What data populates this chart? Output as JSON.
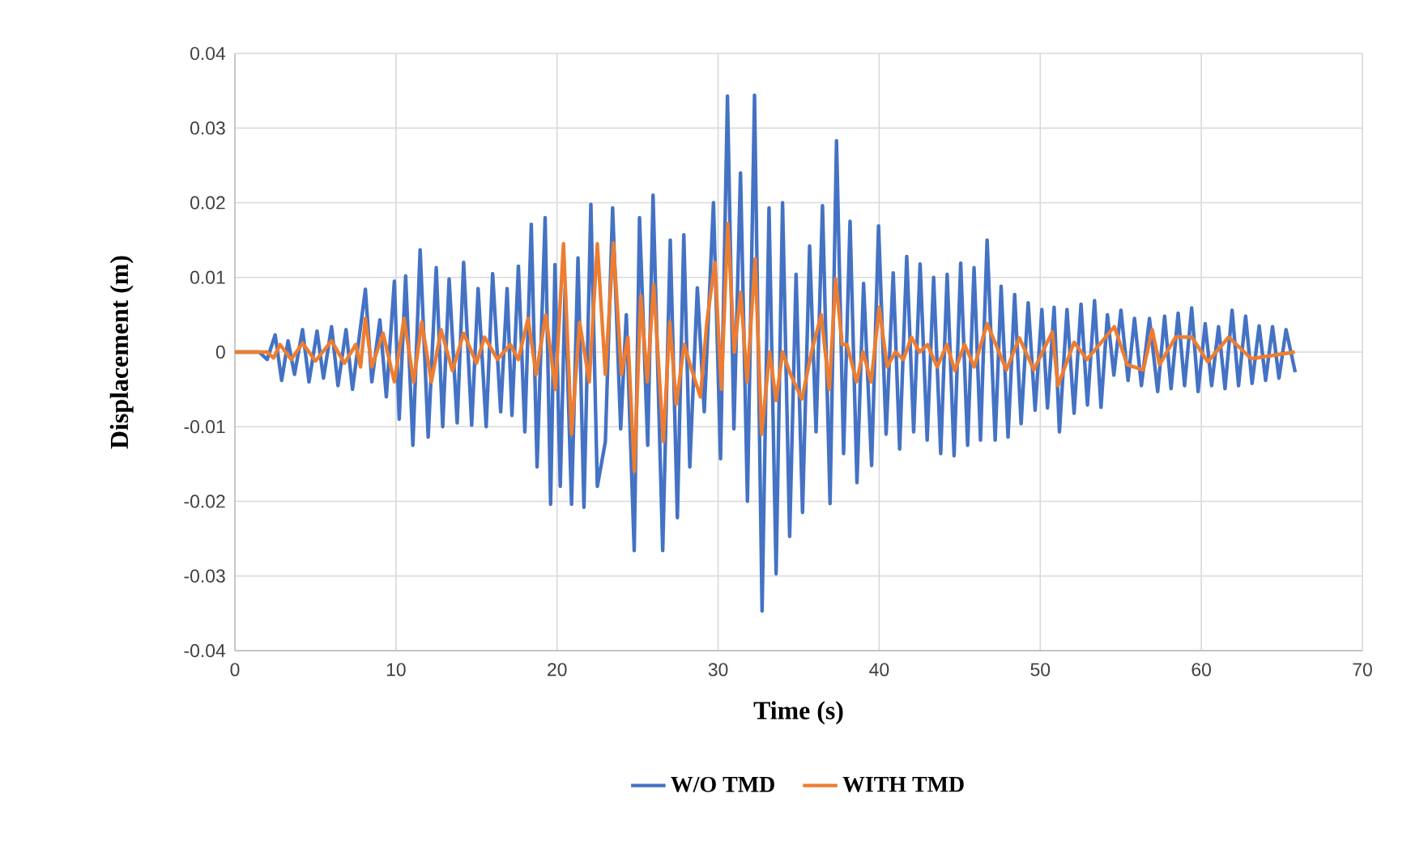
{
  "chart_data": {
    "type": "line",
    "xlabel": "Time (s)",
    "ylabel": "Displacement (m)",
    "xlim": [
      0,
      70
    ],
    "xticks": [
      0,
      10,
      20,
      30,
      40,
      50,
      60,
      70
    ],
    "ylim": [
      -0.04,
      0.04
    ],
    "yticks": [
      -0.04,
      -0.03,
      -0.02,
      -0.01,
      0,
      0.01,
      0.02,
      0.03,
      0.04
    ],
    "grid": true,
    "legend": "bottom",
    "series": [
      {
        "name": "W/O TMD",
        "color": "#4472c4",
        "x": [
          0,
          1.5,
          2.0,
          2.5,
          2.9,
          3.3,
          3.7,
          4.2,
          4.6,
          5.1,
          5.5,
          6.0,
          6.4,
          6.9,
          7.3,
          8.1,
          8.5,
          9.0,
          9.4,
          9.9,
          10.2,
          10.6,
          11.05,
          11.5,
          12.0,
          12.5,
          12.9,
          13.3,
          13.8,
          14.2,
          14.7,
          15.1,
          15.6,
          16.0,
          16.5,
          16.9,
          17.2,
          17.6,
          18.0,
          18.4,
          18.76,
          19.26,
          19.6,
          19.87,
          20.2,
          20.5,
          20.9,
          21.3,
          21.67,
          22.1,
          22.5,
          23.0,
          23.45,
          23.95,
          24.3,
          24.79,
          25.12,
          25.63,
          25.96,
          26.56,
          27.03,
          27.47,
          27.87,
          28.24,
          28.71,
          29.14,
          29.71,
          30.15,
          30.58,
          30.98,
          31.39,
          31.82,
          32.26,
          32.73,
          33.16,
          33.6,
          34.0,
          34.44,
          34.84,
          35.24,
          35.68,
          36.08,
          36.48,
          36.95,
          37.35,
          37.79,
          38.19,
          38.62,
          39.03,
          39.53,
          39.96,
          40.43,
          40.87,
          41.27,
          41.71,
          42.14,
          42.54,
          42.98,
          43.38,
          43.82,
          44.22,
          44.65,
          45.06,
          45.49,
          45.89,
          46.29,
          46.7,
          47.2,
          47.57,
          48.0,
          48.41,
          48.81,
          49.25,
          49.68,
          50.1,
          50.45,
          50.86,
          51.19,
          51.66,
          52.1,
          52.53,
          52.93,
          53.37,
          53.77,
          54.17,
          54.57,
          55.01,
          55.45,
          55.85,
          56.28,
          56.78,
          57.29,
          57.72,
          58.12,
          58.56,
          58.96,
          59.4,
          59.8,
          60.24,
          60.64,
          61.07,
          61.47,
          61.91,
          62.31,
          62.75,
          63.15,
          63.59,
          63.99,
          64.42,
          64.82,
          65.26,
          65.83
        ],
        "values": [
          0,
          0,
          -0.001,
          0.0023,
          -0.0038,
          0.0015,
          -0.003,
          0.003,
          -0.004,
          0.0028,
          -0.0035,
          0.0034,
          -0.0045,
          0.003,
          -0.005,
          0.0084,
          -0.004,
          0.0043,
          -0.006,
          0.0095,
          -0.009,
          0.0102,
          -0.0125,
          0.0137,
          -0.0114,
          0.0113,
          -0.01,
          0.0098,
          -0.0095,
          0.012,
          -0.0098,
          0.0085,
          -0.01,
          0.0105,
          -0.008,
          0.0085,
          -0.0085,
          0.0115,
          -0.0107,
          0.0171,
          -0.0154,
          0.018,
          -0.0204,
          0.0117,
          -0.018,
          0.0085,
          -0.0204,
          0.0126,
          -0.0208,
          0.0198,
          -0.018,
          -0.012,
          0.0193,
          -0.0103,
          0.005,
          -0.0266,
          0.018,
          -0.0125,
          0.021,
          -0.0266,
          0.015,
          -0.0222,
          0.0157,
          -0.0154,
          0.0086,
          -0.008,
          0.02,
          -0.0143,
          0.0343,
          -0.0103,
          0.024,
          -0.02,
          0.0344,
          -0.0347,
          0.0193,
          -0.0297,
          0.02,
          -0.0247,
          0.0104,
          -0.0215,
          0.0142,
          -0.0107,
          0.0196,
          -0.0203,
          0.0283,
          -0.0136,
          0.0175,
          -0.0175,
          0.0092,
          -0.0152,
          0.0169,
          -0.011,
          0.0106,
          -0.013,
          0.0128,
          -0.0107,
          0.0118,
          -0.0118,
          0.01,
          -0.0136,
          0.0104,
          -0.0139,
          0.0119,
          -0.0125,
          0.0113,
          -0.0118,
          0.015,
          -0.0118,
          0.0088,
          -0.0114,
          0.0077,
          -0.0096,
          0.0066,
          -0.0078,
          0.0057,
          -0.0075,
          0.006,
          -0.0107,
          0.0057,
          -0.0082,
          0.0064,
          -0.0071,
          0.0069,
          -0.0074,
          0.005,
          -0.0031,
          0.0056,
          -0.0038,
          0.0045,
          -0.0045,
          0.0045,
          -0.0053,
          0.0048,
          -0.0049,
          0.0052,
          -0.0045,
          0.0059,
          -0.0053,
          0.0038,
          -0.0045,
          0.0034,
          -0.0049,
          0.0056,
          -0.0045,
          0.0048,
          -0.0042,
          0.0035,
          -0.0038,
          0.0034,
          -0.0035,
          0.003,
          -0.0027
        ]
      },
      {
        "name": "WITH TMD",
        "color": "#ed7d31",
        "x": [
          0,
          2,
          2.4,
          2.8,
          3.5,
          4.2,
          5.0,
          6.0,
          6.8,
          7.5,
          7.8,
          8.1,
          8.5,
          9.2,
          9.9,
          10.5,
          11.1,
          11.6,
          12.2,
          12.8,
          13.5,
          14.2,
          15.0,
          15.5,
          16.3,
          17.1,
          17.6,
          18.2,
          18.7,
          19.3,
          19.9,
          20.4,
          20.9,
          21.4,
          22.0,
          22.5,
          23.0,
          23.5,
          24.0,
          24.4,
          24.8,
          25.2,
          25.6,
          26.0,
          26.6,
          27.0,
          27.4,
          27.9,
          28.3,
          28.9,
          29.3,
          29.8,
          30.2,
          30.6,
          31.0,
          31.4,
          31.8,
          32.3,
          32.7,
          33.2,
          33.6,
          34.0,
          34.5,
          35.2,
          35.8,
          36.4,
          36.9,
          37.3,
          37.7,
          38.0,
          38.6,
          39.0,
          39.5,
          40.0,
          40.5,
          41.0,
          41.5,
          42.0,
          42.5,
          43.0,
          43.6,
          44.2,
          44.7,
          45.3,
          45.9,
          46.7,
          47.9,
          48.7,
          49.6,
          50.75,
          51.1,
          52.1,
          52.9,
          54.6,
          55.4,
          56.4,
          56.95,
          57.4,
          58.4,
          59.4,
          60.4,
          61.7,
          63.1,
          65.8
        ],
        "values": [
          0,
          0,
          -0.0008,
          0.001,
          -0.001,
          0.0012,
          -0.0012,
          0.0015,
          -0.0015,
          0.001,
          -0.002,
          0.0045,
          -0.002,
          0.0025,
          -0.004,
          0.0045,
          -0.004,
          0.004,
          -0.004,
          0.003,
          -0.0025,
          0.0025,
          -0.0015,
          0.002,
          -0.001,
          0.001,
          -0.001,
          0.0045,
          -0.003,
          0.005,
          -0.005,
          0.0145,
          -0.011,
          0.004,
          -0.004,
          0.0145,
          -0.003,
          0.0146,
          -0.003,
          0.002,
          -0.016,
          0.0075,
          -0.004,
          0.009,
          -0.012,
          0.004,
          -0.007,
          0.001,
          -0.002,
          -0.006,
          0.004,
          0.012,
          -0.005,
          0.0172,
          0,
          0.008,
          -0.004,
          0.0125,
          -0.011,
          0,
          -0.0065,
          0,
          -0.003,
          -0.0063,
          0,
          0.005,
          -0.005,
          0.0098,
          0.001,
          0.001,
          -0.004,
          0,
          -0.004,
          0.006,
          -0.002,
          0,
          -0.001,
          0.002,
          0,
          0.001,
          -0.002,
          0.001,
          -0.0025,
          0.001,
          -0.002,
          0.0038,
          -0.0024,
          0.0019,
          -0.0024,
          0.0027,
          -0.0045,
          0.0013,
          -0.001,
          0.0034,
          -0.0017,
          -0.0024,
          0.003,
          -0.0017,
          0.002,
          0.002,
          -0.0013,
          0.002,
          -0.0009,
          0
        ]
      }
    ]
  }
}
